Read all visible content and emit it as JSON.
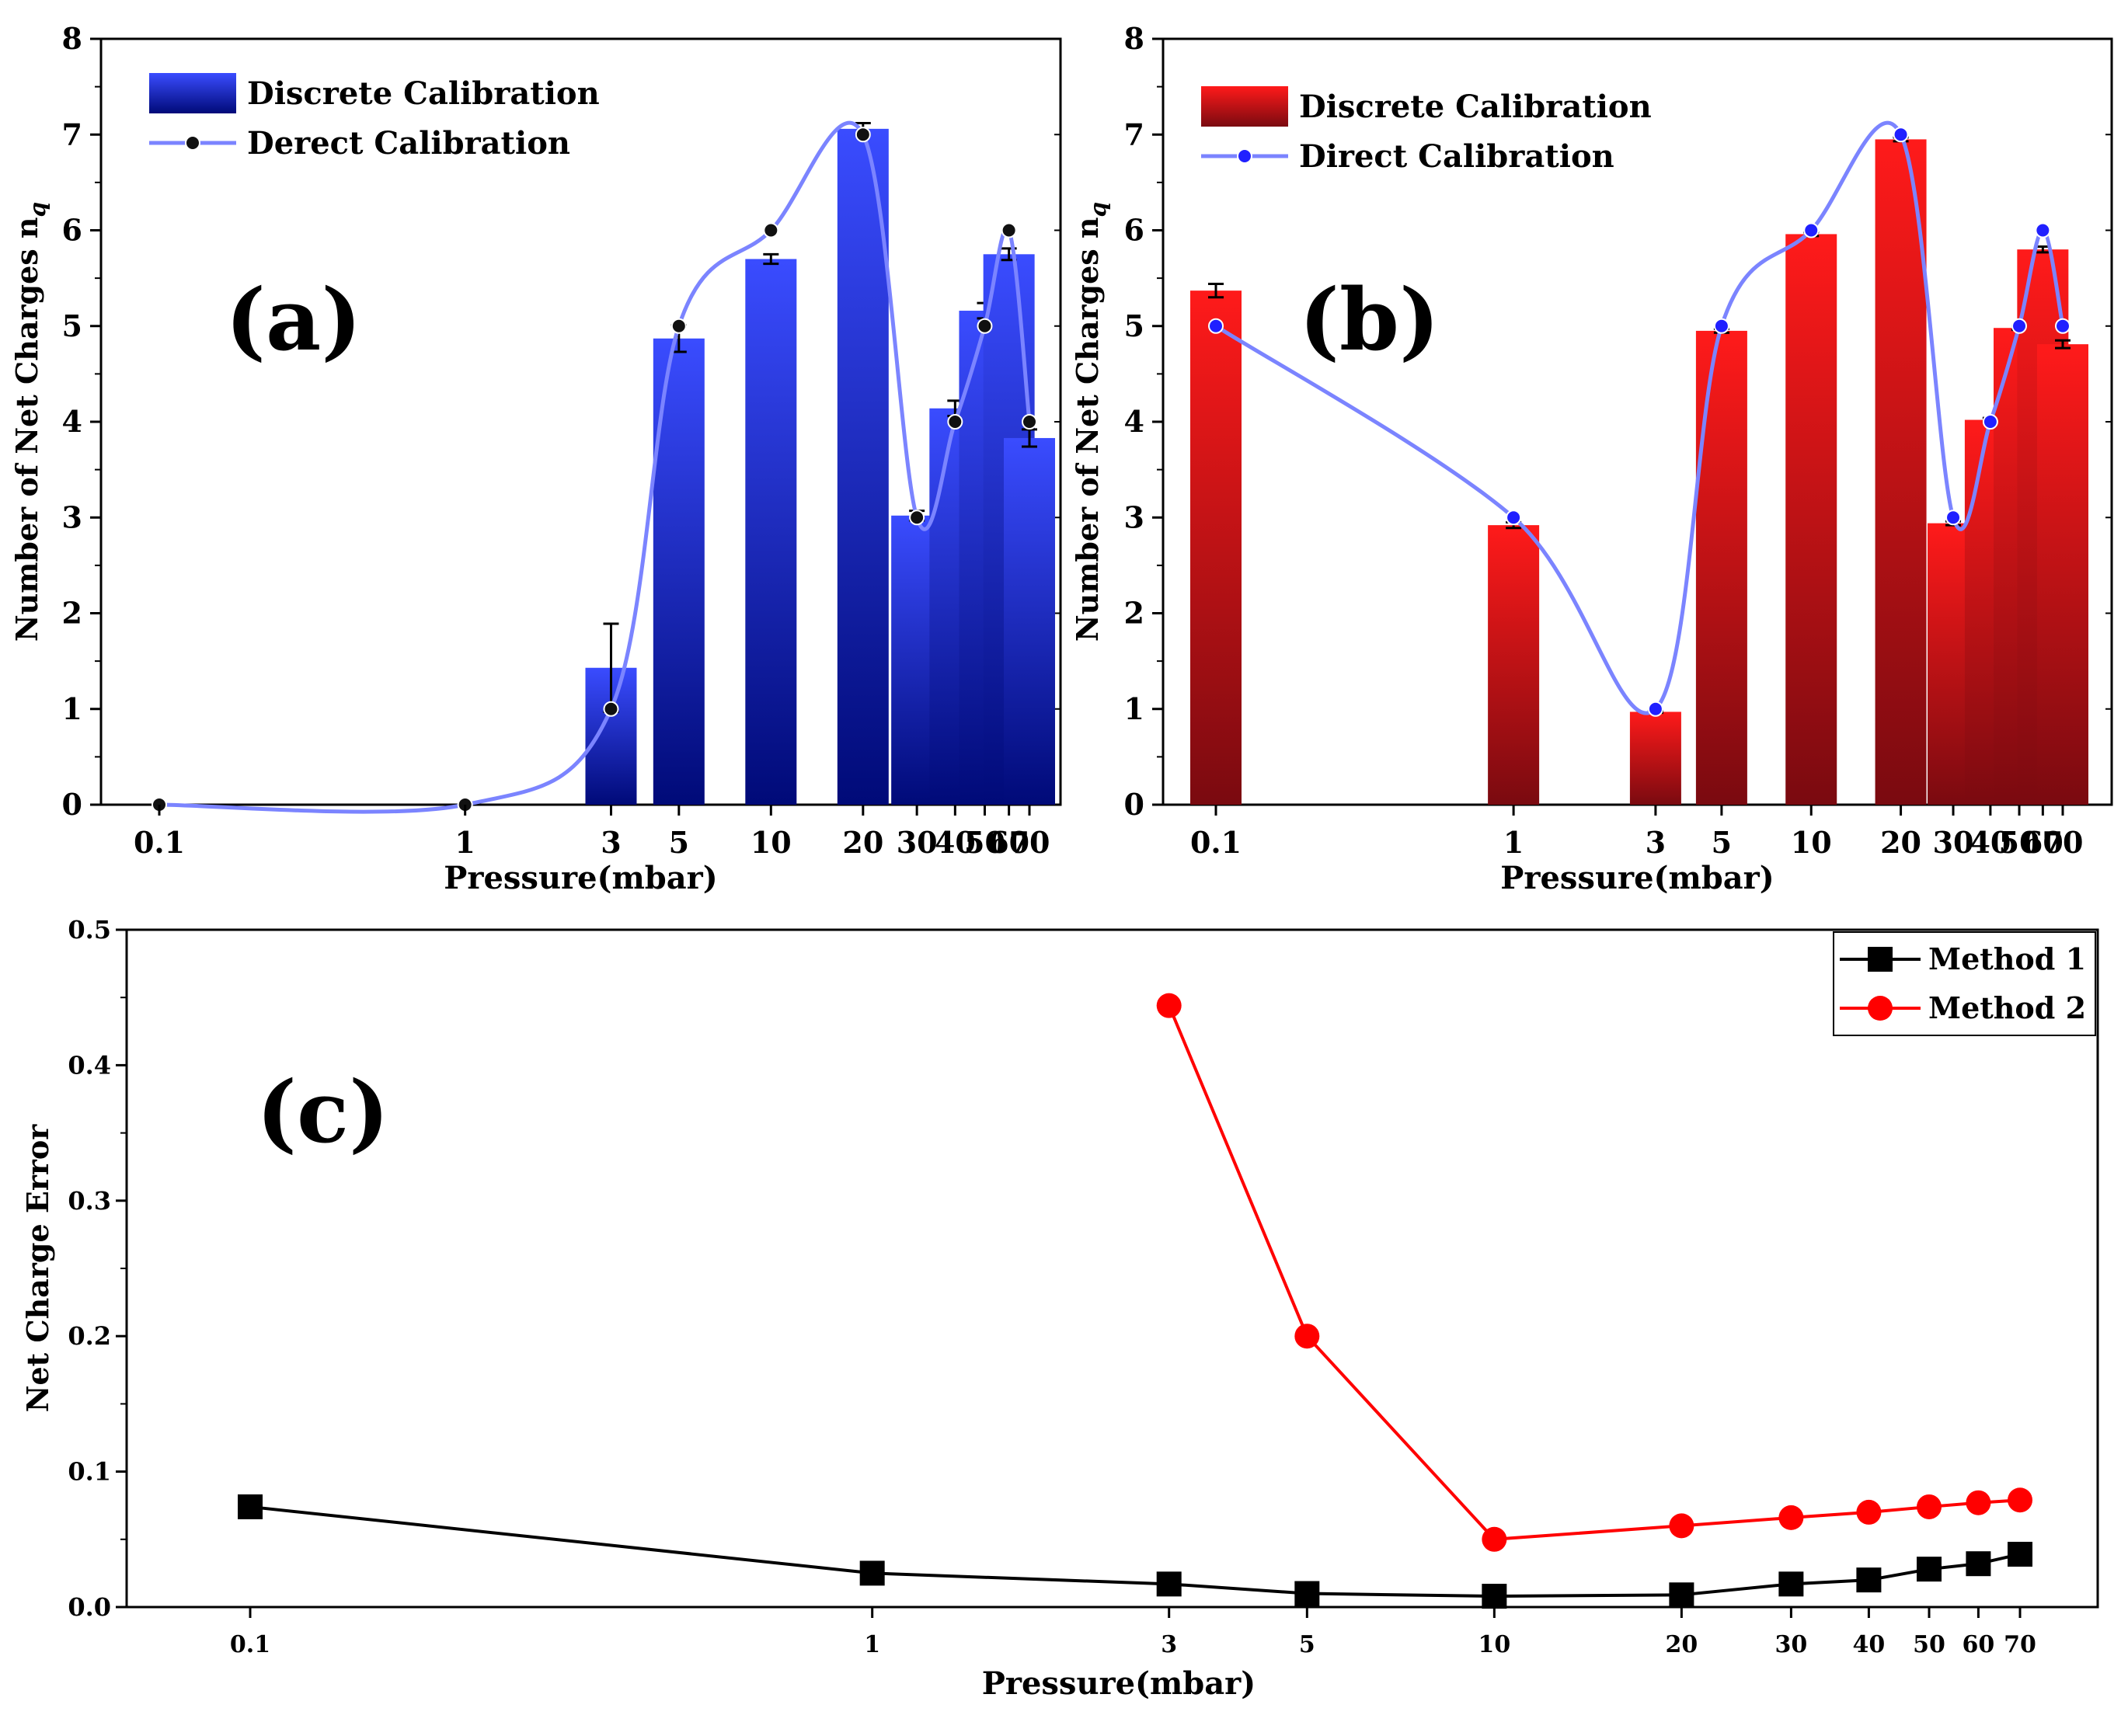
{
  "chart_data": [
    {
      "type": "bar",
      "panel_label": "(a)",
      "categories": [
        "0.1",
        "1",
        "3",
        "5",
        "10",
        "20",
        "30",
        "40",
        "50",
        "60",
        "70"
      ],
      "x_positions": [
        0.1,
        1,
        3,
        5,
        10,
        20,
        30,
        40,
        50,
        60,
        70
      ],
      "yticks": [
        "0",
        "1",
        "2",
        "3",
        "4",
        "5",
        "6",
        "7",
        "8"
      ],
      "ylim": [
        0,
        8
      ],
      "xlabel": "Pressure(mbar)",
      "ylabel": "Number of Net Charges n",
      "ylabel_subscript": "q",
      "series": [
        {
          "name": "Discrete Calibration",
          "kind": "bar",
          "values": [
            0,
            0,
            1.43,
            4.87,
            5.7,
            7.06,
            3.02,
            4.14,
            5.16,
            5.75,
            3.83
          ],
          "errors": [
            0,
            0,
            0.46,
            0.14,
            0.05,
            0.06,
            0.05,
            0.08,
            0.08,
            0.06,
            0.09
          ],
          "color_top": "#3a4cff",
          "color_bottom": "#000a78"
        },
        {
          "name": "Derect Calibration",
          "kind": "line",
          "values": [
            0,
            0,
            1,
            5,
            6,
            7,
            3,
            4,
            5,
            6,
            4
          ],
          "line_color": "#7b84ff",
          "marker_color": "#111111"
        }
      ]
    },
    {
      "type": "bar",
      "panel_label": "(b)",
      "categories": [
        "0.1",
        "1",
        "3",
        "5",
        "10",
        "20",
        "30",
        "40",
        "50",
        "60",
        "70"
      ],
      "x_positions": [
        0.1,
        1,
        3,
        5,
        10,
        20,
        30,
        40,
        50,
        60,
        70
      ],
      "yticks": [
        "0",
        "1",
        "2",
        "3",
        "4",
        "5",
        "6",
        "7",
        "8"
      ],
      "ylim": [
        0,
        8
      ],
      "xlabel": "Pressure(mbar)",
      "ylabel": "Number of Net Charges n",
      "ylabel_subscript": "q",
      "series": [
        {
          "name": "Discrete Calibration",
          "kind": "bar",
          "values": [
            5.37,
            2.92,
            0.97,
            4.95,
            5.96,
            6.95,
            2.94,
            4.02,
            4.98,
            5.8,
            4.81
          ],
          "errors": [
            0.07,
            0.03,
            0.01,
            0.02,
            0.02,
            0.02,
            0.02,
            0.02,
            0.02,
            0.03,
            0.04
          ],
          "color_top": "#ff1a1a",
          "color_bottom": "#7a0a10"
        },
        {
          "name": "Direct Calibration",
          "kind": "line",
          "values": [
            5,
            3,
            1,
            5,
            6,
            7,
            3,
            4,
            5,
            6,
            5
          ],
          "line_color": "#7b84ff",
          "marker_color": "#2020ff"
        }
      ]
    },
    {
      "type": "line",
      "panel_label": "(c)",
      "categories": [
        "0.1",
        "1",
        "3",
        "5",
        "10",
        "20",
        "30",
        "40",
        "50",
        "60",
        "70"
      ],
      "x_positions": [
        0.1,
        1,
        3,
        5,
        10,
        20,
        30,
        40,
        50,
        60,
        70
      ],
      "yticks": [
        "0.0",
        "0.1",
        "0.2",
        "0.3",
        "0.4",
        "0.5"
      ],
      "ylim": [
        0,
        0.5
      ],
      "xlabel": "Pressure(mbar)",
      "ylabel": "Net Charge Error",
      "series": [
        {
          "name": "Method 1",
          "marker": "square",
          "color": "#000000",
          "x": [
            "0.1",
            "1",
            "3",
            "5",
            "10",
            "20",
            "30",
            "40",
            "50",
            "60",
            "70"
          ],
          "values": [
            0.074,
            0.025,
            0.017,
            0.01,
            0.008,
            0.009,
            0.017,
            0.02,
            0.028,
            0.032,
            0.039
          ]
        },
        {
          "name": "Method 2",
          "marker": "circle",
          "color": "#ff0000",
          "x": [
            "3",
            "5",
            "10",
            "20",
            "30",
            "40",
            "50",
            "60",
            "70"
          ],
          "values": [
            0.444,
            0.2,
            0.05,
            0.06,
            0.066,
            0.07,
            0.074,
            0.077,
            0.079
          ]
        }
      ]
    }
  ]
}
